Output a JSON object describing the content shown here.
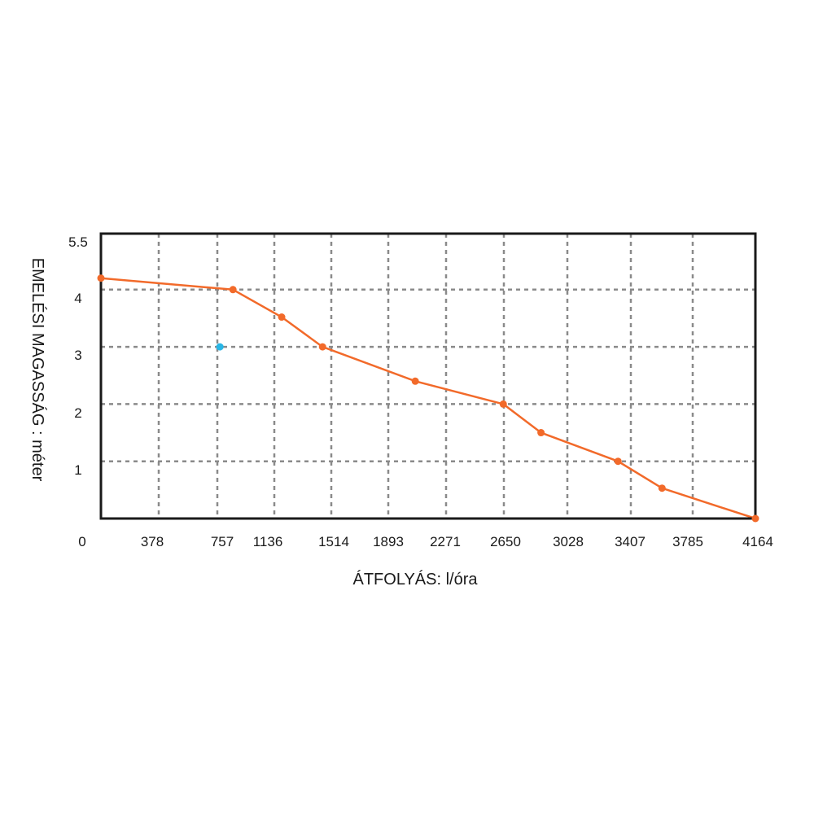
{
  "chart_data": {
    "type": "line",
    "xlabel": "ÁTFOLYÁS: l/óra",
    "ylabel": "EMELÉSI MAGASSÁG : méter",
    "x_ticks": [
      "0",
      "378",
      "757",
      "1136",
      "1514",
      "1893",
      "2271",
      "2650",
      "3028",
      "3407",
      "3785",
      "4164"
    ],
    "y_ticks": [
      "1",
      "2",
      "3",
      "4",
      "5.5"
    ],
    "xlim": [
      0,
      4164
    ],
    "ylim": [
      0,
      4.5
    ],
    "grid": true,
    "grid_style": "dashed",
    "series": [
      {
        "color": "#f26a2a",
        "x": [
          0,
          840,
          1150,
          1410,
          2000,
          2560,
          2800,
          3290,
          3570,
          4164
        ],
        "y": [
          4.2,
          4.0,
          3.52,
          3.0,
          2.4,
          2.0,
          1.5,
          1.0,
          0.53,
          0.0
        ]
      }
    ],
    "extra_points": [
      {
        "x": 757,
        "y": 3.0,
        "color": "#29b6e6"
      }
    ],
    "frame_color": "#1a1a1a",
    "grid_color": "#8a8a8a"
  }
}
